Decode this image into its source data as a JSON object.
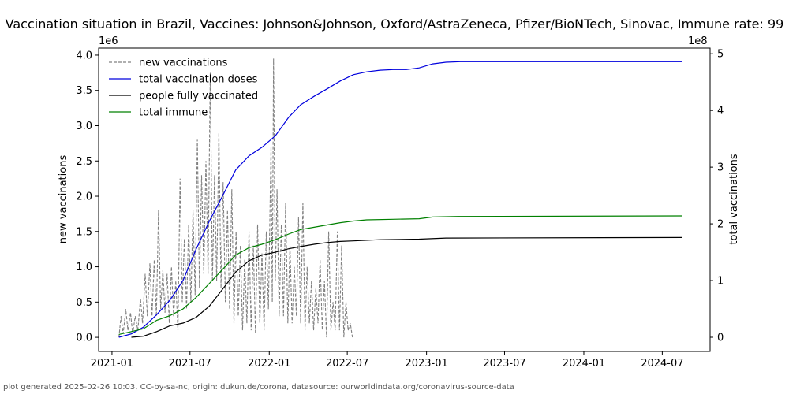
{
  "chart_data": {
    "type": "line",
    "title": "Vaccination situation in Brazil, Vaccines: Johnson&Johnson, Oxford/AstraZeneca, Pfizer/BioNTech, Sinovac, Immune rate: 99",
    "ylabel": "new vaccinations",
    "y2label": "total vaccinations",
    "y_multiplier": "1e6",
    "y2_multiplier": "1e8",
    "ylim": [
      -0.2,
      4.1
    ],
    "y2lim": [
      -0.25,
      5.1
    ],
    "xlim": [
      "2020-12-01",
      "2024-10-20"
    ],
    "yticks": [
      "0.0",
      "0.5",
      "1.0",
      "1.5",
      "2.0",
      "2.5",
      "3.0",
      "3.5",
      "4.0"
    ],
    "y2ticks": [
      "0",
      "1",
      "2",
      "3",
      "4",
      "5"
    ],
    "xticks": [
      {
        "date": "2021-01-01",
        "label": "2021-01"
      },
      {
        "date": "2021-07-01",
        "label": "2021-07"
      },
      {
        "date": "2022-01-01",
        "label": "2022-01"
      },
      {
        "date": "2022-07-01",
        "label": "2022-07"
      },
      {
        "date": "2023-01-01",
        "label": "2023-01"
      },
      {
        "date": "2023-07-01",
        "label": "2023-07"
      },
      {
        "date": "2024-01-01",
        "label": "2024-01"
      },
      {
        "date": "2024-07-01",
        "label": "2024-07"
      }
    ],
    "legend_position": "top-left",
    "grid": false,
    "series": [
      {
        "name": "new vaccinations",
        "axis": "left",
        "color": "#808080",
        "style": "dashed",
        "points": [
          [
            "2021-01-17",
            0.0
          ],
          [
            "2021-01-22",
            0.3
          ],
          [
            "2021-01-27",
            0.05
          ],
          [
            "2021-02-02",
            0.4
          ],
          [
            "2021-02-07",
            0.1
          ],
          [
            "2021-02-13",
            0.35
          ],
          [
            "2021-02-18",
            0.05
          ],
          [
            "2021-02-24",
            0.3
          ],
          [
            "2021-03-02",
            0.1
          ],
          [
            "2021-03-08",
            0.55
          ],
          [
            "2021-03-13",
            0.2
          ],
          [
            "2021-03-19",
            0.9
          ],
          [
            "2021-03-24",
            0.3
          ],
          [
            "2021-03-30",
            1.05
          ],
          [
            "2021-04-04",
            0.3
          ],
          [
            "2021-04-09",
            1.1
          ],
          [
            "2021-04-14",
            0.3
          ],
          [
            "2021-04-19",
            1.8
          ],
          [
            "2021-04-24",
            0.4
          ],
          [
            "2021-04-29",
            0.95
          ],
          [
            "2021-05-04",
            0.35
          ],
          [
            "2021-05-09",
            0.9
          ],
          [
            "2021-05-14",
            0.2
          ],
          [
            "2021-05-19",
            1.0
          ],
          [
            "2021-05-24",
            0.3
          ],
          [
            "2021-05-29",
            0.8
          ],
          [
            "2021-06-03",
            0.1
          ],
          [
            "2021-06-08",
            2.25
          ],
          [
            "2021-06-13",
            0.5
          ],
          [
            "2021-06-18",
            1.4
          ],
          [
            "2021-06-23",
            0.4
          ],
          [
            "2021-06-28",
            1.6
          ],
          [
            "2021-07-03",
            0.5
          ],
          [
            "2021-07-08",
            1.8
          ],
          [
            "2021-07-13",
            0.6
          ],
          [
            "2021-07-18",
            2.8
          ],
          [
            "2021-07-23",
            0.7
          ],
          [
            "2021-07-28",
            2.3
          ],
          [
            "2021-08-02",
            0.9
          ],
          [
            "2021-08-07",
            2.5
          ],
          [
            "2021-08-12",
            0.9
          ],
          [
            "2021-08-17",
            3.75
          ],
          [
            "2021-08-22",
            0.8
          ],
          [
            "2021-08-27",
            2.3
          ],
          [
            "2021-09-01",
            0.8
          ],
          [
            "2021-09-06",
            2.9
          ],
          [
            "2021-09-11",
            0.7
          ],
          [
            "2021-09-16",
            2.2
          ],
          [
            "2021-09-21",
            0.5
          ],
          [
            "2021-09-26",
            1.8
          ],
          [
            "2021-10-01",
            0.4
          ],
          [
            "2021-10-06",
            2.1
          ],
          [
            "2021-10-11",
            0.2
          ],
          [
            "2021-10-16",
            1.5
          ],
          [
            "2021-10-21",
            0.3
          ],
          [
            "2021-10-26",
            1.3
          ],
          [
            "2021-10-31",
            0.1
          ],
          [
            "2021-11-05",
            1.1
          ],
          [
            "2021-11-10",
            0.2
          ],
          [
            "2021-11-15",
            1.5
          ],
          [
            "2021-11-20",
            0.1
          ],
          [
            "2021-11-25",
            1.3
          ],
          [
            "2021-11-30",
            0.05
          ],
          [
            "2021-12-05",
            1.6
          ],
          [
            "2021-12-10",
            0.2
          ],
          [
            "2021-12-15",
            1.2
          ],
          [
            "2021-12-20",
            0.1
          ],
          [
            "2021-12-25",
            1.5
          ],
          [
            "2021-12-30",
            0.4
          ],
          [
            "2022-01-05",
            2.7
          ],
          [
            "2022-01-08",
            0.5
          ],
          [
            "2022-01-11",
            3.95
          ],
          [
            "2022-01-15",
            0.8
          ],
          [
            "2022-01-19",
            2.1
          ],
          [
            "2022-01-24",
            0.3
          ],
          [
            "2022-01-29",
            1.6
          ],
          [
            "2022-02-03",
            0.3
          ],
          [
            "2022-02-08",
            1.9
          ],
          [
            "2022-02-13",
            0.2
          ],
          [
            "2022-02-18",
            1.3
          ],
          [
            "2022-02-23",
            0.2
          ],
          [
            "2022-02-28",
            1.0
          ],
          [
            "2022-03-05",
            0.3
          ],
          [
            "2022-03-10",
            1.7
          ],
          [
            "2022-03-15",
            0.2
          ],
          [
            "2022-03-20",
            1.9
          ],
          [
            "2022-03-25",
            0.1
          ],
          [
            "2022-03-30",
            1.0
          ],
          [
            "2022-04-04",
            0.2
          ],
          [
            "2022-04-09",
            0.8
          ],
          [
            "2022-04-14",
            0.1
          ],
          [
            "2022-04-19",
            0.7
          ],
          [
            "2022-04-24",
            0.2
          ],
          [
            "2022-04-29",
            1.1
          ],
          [
            "2022-05-04",
            0.1
          ],
          [
            "2022-05-09",
            0.8
          ],
          [
            "2022-05-14",
            0.0
          ],
          [
            "2022-05-19",
            1.5
          ],
          [
            "2022-05-24",
            0.1
          ],
          [
            "2022-05-29",
            0.5
          ],
          [
            "2022-06-03",
            0.1
          ],
          [
            "2022-06-08",
            1.5
          ],
          [
            "2022-06-13",
            0.1
          ],
          [
            "2022-06-18",
            1.3
          ],
          [
            "2022-06-23",
            0.0
          ],
          [
            "2022-06-28",
            0.5
          ],
          [
            "2022-07-03",
            0.1
          ],
          [
            "2022-07-08",
            0.2
          ],
          [
            "2022-07-13",
            0.0
          ]
        ]
      },
      {
        "name": "total vaccination doses",
        "axis": "right",
        "color": "#0000dd",
        "style": "solid",
        "points": [
          [
            "2021-01-17",
            0.0
          ],
          [
            "2021-02-15",
            0.06
          ],
          [
            "2021-03-15",
            0.18
          ],
          [
            "2021-04-15",
            0.4
          ],
          [
            "2021-05-15",
            0.65
          ],
          [
            "2021-06-15",
            1.0
          ],
          [
            "2021-07-15",
            1.55
          ],
          [
            "2021-08-15",
            2.05
          ],
          [
            "2021-09-15",
            2.5
          ],
          [
            "2021-10-15",
            2.95
          ],
          [
            "2021-11-15",
            3.2
          ],
          [
            "2021-12-15",
            3.35
          ],
          [
            "2022-01-15",
            3.55
          ],
          [
            "2022-02-15",
            3.88
          ],
          [
            "2022-03-15",
            4.1
          ],
          [
            "2022-04-15",
            4.25
          ],
          [
            "2022-05-15",
            4.38
          ],
          [
            "2022-06-15",
            4.52
          ],
          [
            "2022-07-15",
            4.63
          ],
          [
            "2022-08-15",
            4.68
          ],
          [
            "2022-09-15",
            4.71
          ],
          [
            "2022-10-15",
            4.72
          ],
          [
            "2022-11-15",
            4.72
          ],
          [
            "2022-12-15",
            4.75
          ],
          [
            "2023-01-15",
            4.82
          ],
          [
            "2023-02-15",
            4.85
          ],
          [
            "2023-03-20",
            4.86
          ],
          [
            "2024-08-15",
            4.86
          ]
        ]
      },
      {
        "name": "people fully vaccinated",
        "axis": "right",
        "color": "#000000",
        "style": "solid",
        "points": [
          [
            "2021-02-15",
            0.0
          ],
          [
            "2021-03-15",
            0.02
          ],
          [
            "2021-04-15",
            0.1
          ],
          [
            "2021-05-15",
            0.2
          ],
          [
            "2021-06-15",
            0.25
          ],
          [
            "2021-07-15",
            0.35
          ],
          [
            "2021-08-15",
            0.55
          ],
          [
            "2021-09-15",
            0.85
          ],
          [
            "2021-10-15",
            1.15
          ],
          [
            "2021-11-15",
            1.35
          ],
          [
            "2021-12-15",
            1.45
          ],
          [
            "2022-01-15",
            1.5
          ],
          [
            "2022-02-15",
            1.56
          ],
          [
            "2022-03-15",
            1.6
          ],
          [
            "2022-04-15",
            1.64
          ],
          [
            "2022-05-15",
            1.67
          ],
          [
            "2022-06-15",
            1.69
          ],
          [
            "2022-07-15",
            1.7
          ],
          [
            "2022-09-15",
            1.72
          ],
          [
            "2022-12-15",
            1.73
          ],
          [
            "2023-02-15",
            1.75
          ],
          [
            "2024-08-15",
            1.76
          ]
        ]
      },
      {
        "name": "total immune",
        "axis": "right",
        "color": "#008000",
        "style": "solid",
        "points": [
          [
            "2021-01-17",
            0.05
          ],
          [
            "2021-02-15",
            0.1
          ],
          [
            "2021-03-15",
            0.15
          ],
          [
            "2021-04-15",
            0.3
          ],
          [
            "2021-05-15",
            0.38
          ],
          [
            "2021-06-15",
            0.5
          ],
          [
            "2021-07-15",
            0.7
          ],
          [
            "2021-08-15",
            0.95
          ],
          [
            "2021-09-15",
            1.2
          ],
          [
            "2021-10-15",
            1.45
          ],
          [
            "2021-11-15",
            1.58
          ],
          [
            "2021-12-15",
            1.64
          ],
          [
            "2022-01-15",
            1.72
          ],
          [
            "2022-02-15",
            1.82
          ],
          [
            "2022-03-15",
            1.9
          ],
          [
            "2022-04-15",
            1.94
          ],
          [
            "2022-05-15",
            1.98
          ],
          [
            "2022-06-15",
            2.02
          ],
          [
            "2022-07-15",
            2.05
          ],
          [
            "2022-08-15",
            2.07
          ],
          [
            "2022-10-15",
            2.08
          ],
          [
            "2022-12-15",
            2.09
          ],
          [
            "2023-01-15",
            2.12
          ],
          [
            "2023-03-15",
            2.13
          ],
          [
            "2024-08-15",
            2.14
          ]
        ]
      }
    ]
  },
  "footer": "plot generated 2025-02-26 10:03, CC-by-sa-nc, origin: dukun.de/corona, datasource: ourworldindata.org/coronavirus-source-data"
}
